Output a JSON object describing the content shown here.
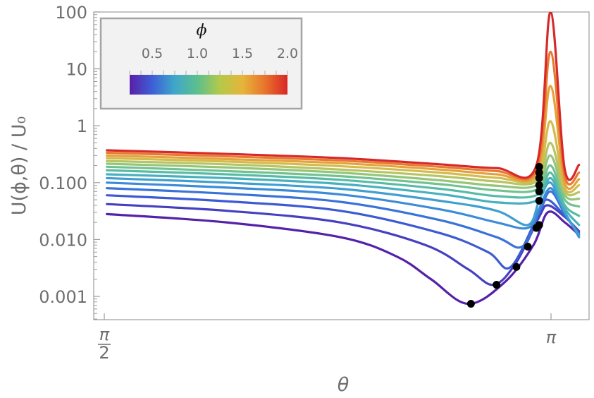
{
  "chart_data": {
    "type": "line",
    "xlabel": "θ",
    "ylabel": "U(ϕ,θ) / U₀",
    "y_scale": "log",
    "ylim": [
      0.0004,
      100
    ],
    "xlim": [
      1.5708,
      3.25
    ],
    "x_ticks": [
      {
        "value": 1.5708,
        "numerator": "π",
        "denominator": "2"
      },
      {
        "value": 3.14159,
        "label": "π"
      }
    ],
    "y_ticks": [
      {
        "value": 0.001,
        "label": "0.001"
      },
      {
        "value": 0.01,
        "label": "0.010"
      },
      {
        "value": 0.1,
        "label": "0.100"
      },
      {
        "value": 1,
        "label": "1"
      },
      {
        "value": 10,
        "label": "10"
      },
      {
        "value": 100,
        "label": "100"
      }
    ],
    "grid": false,
    "colorbar": {
      "title": "ϕ",
      "position": "top-left",
      "range": [
        0.25,
        2.0
      ],
      "tick_labels": [
        "0.5",
        "1.0",
        "1.5",
        "2.0"
      ],
      "tick_values": [
        0.5,
        1.0,
        1.5,
        2.0
      ],
      "gradient": [
        "#5a1fa8",
        "#3d5fd6",
        "#3fa7c9",
        "#5cbf8e",
        "#b3c94a",
        "#e6b53b",
        "#e8742c",
        "#d92626"
      ]
    },
    "series": [
      {
        "phi": 0.25,
        "color": "#5421a8",
        "x": [
          1.58,
          2.0,
          2.4,
          2.6,
          2.72,
          2.85,
          2.98,
          3.08,
          3.13,
          3.19,
          3.24
        ],
        "y": [
          0.028,
          0.02,
          0.011,
          0.005,
          0.002,
          0.00074,
          0.0018,
          0.008,
          0.03,
          0.02,
          0.012
        ]
      },
      {
        "phi": 0.375,
        "color": "#4640c0",
        "x": [
          1.58,
          2.0,
          2.4,
          2.7,
          2.85,
          2.94,
          3.02,
          3.1,
          3.13,
          3.19,
          3.24
        ],
        "y": [
          0.042,
          0.032,
          0.02,
          0.008,
          0.003,
          0.0016,
          0.004,
          0.025,
          0.04,
          0.025,
          0.014
        ]
      },
      {
        "phi": 0.5,
        "color": "#3c5ad2",
        "x": [
          1.58,
          2.0,
          2.4,
          2.75,
          2.92,
          3.0,
          3.1,
          3.13,
          3.19,
          3.24
        ],
        "y": [
          0.06,
          0.047,
          0.032,
          0.013,
          0.006,
          0.0033,
          0.03,
          0.05,
          0.026,
          0.013
        ]
      },
      {
        "phi": 0.625,
        "color": "#3a73d8",
        "x": [
          1.58,
          2.0,
          2.4,
          2.75,
          2.95,
          3.04,
          3.1,
          3.14,
          3.19,
          3.24
        ],
        "y": [
          0.08,
          0.064,
          0.046,
          0.022,
          0.011,
          0.0075,
          0.03,
          0.07,
          0.028,
          0.012
        ]
      },
      {
        "phi": 0.75,
        "color": "#3c8bd8",
        "x": [
          1.58,
          2.0,
          2.4,
          2.75,
          2.95,
          3.06,
          3.1,
          3.14,
          3.19,
          3.24
        ],
        "y": [
          0.1,
          0.082,
          0.062,
          0.034,
          0.02,
          0.016,
          0.035,
          0.08,
          0.03,
          0.011
        ]
      },
      {
        "phi": 0.875,
        "color": "#409fcf",
        "x": [
          1.58,
          2.0,
          2.4,
          2.75,
          2.95,
          3.06,
          3.1,
          3.14,
          3.19,
          3.24
        ],
        "y": [
          0.12,
          0.1,
          0.078,
          0.048,
          0.032,
          0.018,
          0.048,
          0.1,
          0.03,
          0.012
        ]
      },
      {
        "phi": 1.0,
        "color": "#48b0be",
        "x": [
          1.58,
          2.0,
          2.4,
          2.75,
          2.95,
          3.09,
          3.14,
          3.19,
          3.24
        ],
        "y": [
          0.14,
          0.12,
          0.095,
          0.063,
          0.045,
          0.048,
          0.12,
          0.035,
          0.018
        ]
      },
      {
        "phi": 1.125,
        "color": "#58bba6",
        "x": [
          1.58,
          2.0,
          2.4,
          2.75,
          2.95,
          3.09,
          3.14,
          3.19,
          3.24
        ],
        "y": [
          0.165,
          0.14,
          0.112,
          0.078,
          0.058,
          0.06,
          0.15,
          0.04,
          0.026
        ]
      },
      {
        "phi": 1.25,
        "color": "#72c290",
        "x": [
          1.58,
          2.0,
          2.4,
          2.75,
          2.95,
          3.09,
          3.14,
          3.19,
          3.24
        ],
        "y": [
          0.19,
          0.16,
          0.13,
          0.094,
          0.073,
          0.075,
          0.2,
          0.05,
          0.038
        ]
      },
      {
        "phi": 1.375,
        "color": "#95c57a",
        "x": [
          1.58,
          2.0,
          2.4,
          2.75,
          2.95,
          3.09,
          3.14,
          3.19,
          3.24
        ],
        "y": [
          0.215,
          0.185,
          0.15,
          0.11,
          0.088,
          0.09,
          0.3,
          0.06,
          0.052
        ]
      },
      {
        "phi": 1.5,
        "color": "#b6c463",
        "x": [
          1.58,
          2.0,
          2.4,
          2.75,
          2.95,
          3.09,
          3.14,
          3.19,
          3.24
        ],
        "y": [
          0.24,
          0.21,
          0.17,
          0.13,
          0.105,
          0.105,
          0.5,
          0.07,
          0.068
        ]
      },
      {
        "phi": 1.625,
        "color": "#d3bb4c",
        "x": [
          1.58,
          2.0,
          2.4,
          2.75,
          2.95,
          3.09,
          3.14,
          3.19,
          3.24
        ],
        "y": [
          0.27,
          0.235,
          0.195,
          0.15,
          0.122,
          0.12,
          1.2,
          0.08,
          0.09
        ]
      },
      {
        "phi": 1.75,
        "color": "#e5a13c",
        "x": [
          1.58,
          2.0,
          2.4,
          2.75,
          2.95,
          3.09,
          3.14,
          3.19,
          3.24
        ],
        "y": [
          0.3,
          0.26,
          0.22,
          0.17,
          0.14,
          0.14,
          5,
          0.1,
          0.115
        ]
      },
      {
        "phi": 1.875,
        "color": "#e67a30",
        "x": [
          1.58,
          2.0,
          2.4,
          2.75,
          2.95,
          3.09,
          3.14,
          3.19,
          3.24
        ],
        "y": [
          0.335,
          0.29,
          0.245,
          0.19,
          0.16,
          0.165,
          20,
          0.13,
          0.15
        ]
      },
      {
        "phi": 2.0,
        "color": "#d82828",
        "x": [
          1.58,
          2.0,
          2.4,
          2.75,
          2.95,
          3.09,
          3.14,
          3.19,
          3.24
        ],
        "y": [
          0.37,
          0.32,
          0.27,
          0.21,
          0.18,
          0.2,
          100,
          0.17,
          0.205
        ]
      }
    ],
    "minima": {
      "x": [
        2.86,
        2.95,
        3.02,
        3.06,
        3.09,
        3.1,
        3.1,
        3.1,
        3.1,
        3.1,
        3.1,
        3.1
      ],
      "y": [
        0.00074,
        0.0016,
        0.0033,
        0.0075,
        0.016,
        0.018,
        0.048,
        0.07,
        0.09,
        0.12,
        0.15,
        0.19
      ]
    }
  }
}
